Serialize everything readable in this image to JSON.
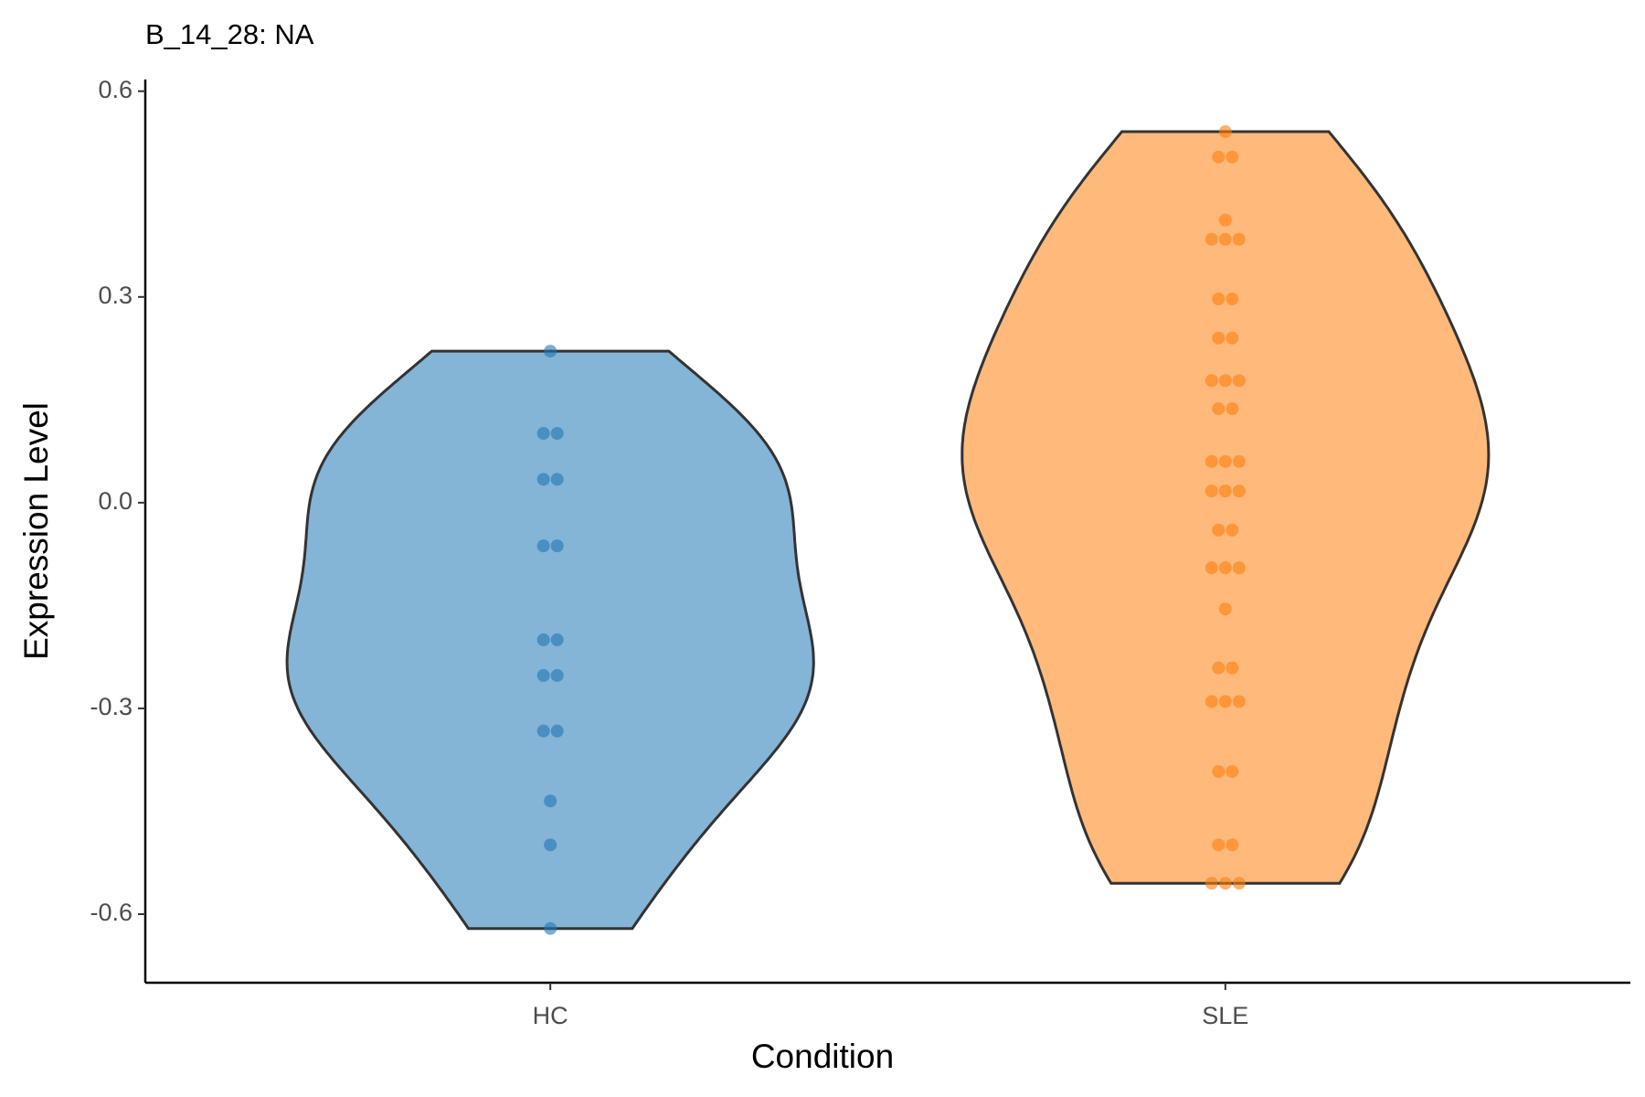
{
  "chart_data": {
    "type": "violin",
    "title": "B_14_28: NA",
    "x_label": "Condition",
    "y_label": "Expression Level",
    "categories": [
      "HC",
      "SLE"
    ],
    "colors": [
      "#1f77b4",
      "#ff7f0e"
    ],
    "values": [
      [
        0.221,
        0.101,
        0.101,
        0.034,
        0.034,
        -0.063,
        -0.063,
        -0.2,
        -0.2,
        -0.252,
        -0.252,
        -0.333,
        -0.333,
        -0.435,
        -0.499,
        -0.621
      ],
      [
        0.541,
        0.504,
        0.504,
        0.412,
        0.384,
        0.384,
        0.384,
        0.297,
        0.297,
        0.24,
        0.24,
        0.178,
        0.178,
        0.178,
        0.137,
        0.137,
        0.06,
        0.06,
        0.06,
        0.017,
        0.017,
        0.017,
        -0.04,
        -0.04,
        -0.095,
        -0.095,
        -0.095,
        -0.155,
        -0.241,
        -0.241,
        -0.29,
        -0.29,
        -0.29,
        -0.392,
        -0.392,
        -0.499,
        -0.499,
        -0.555,
        -0.555,
        -0.555
      ]
    ],
    "ylim": [
      -0.7,
      0.617
    ],
    "yticks": [
      -0.6,
      -0.3,
      {
        "value": 0,
        "label": "0.0"
      },
      0.3,
      0.6
    ],
    "grid": false
  }
}
